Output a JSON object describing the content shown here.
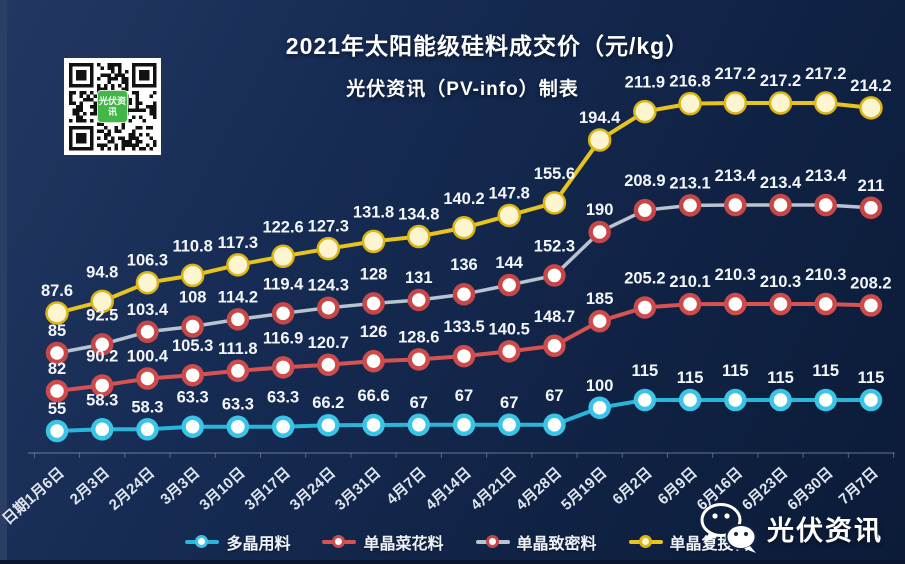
{
  "header": {
    "title": "2021年太阳能级硅料成交价（元/kg）",
    "subtitle": "光伏资讯（PV-info）制表"
  },
  "qr": {
    "label": "光伏资讯"
  },
  "watermark": {
    "brand": "光伏资讯"
  },
  "colors": {
    "background_top": "#223862",
    "background_bottom": "#0b1b38",
    "value_label_text": "#f3f6fb",
    "axis_line": "#aebdd4"
  },
  "chart_data": {
    "type": "line",
    "title": "2021年太阳能级硅料成交价（元/kg）",
    "subtitle": "光伏资讯（PV-info）制表",
    "unit": "元/kg",
    "legend_position": "bottom",
    "grid": false,
    "y_axis_visible": false,
    "x_label_rotation": -42,
    "value_labels": "above each point",
    "categories": [
      "日期1月6日",
      "2月3日",
      "2月24日",
      "3月3日",
      "3月10日",
      "3月17日",
      "3月24日",
      "3月31日",
      "4月7日",
      "4月14日",
      "4月21日",
      "4月28日",
      "5月19日",
      "6月2日",
      "6月9日",
      "6月16日",
      "6月23日",
      "6月30日",
      "7月7日"
    ],
    "series": [
      {
        "name": "多晶用料",
        "color": "#2ab5da",
        "marker_ring": "#3ac4e6",
        "marker_fill": "#ffffff",
        "values": [
          55,
          58.3,
          58.3,
          63.3,
          63.3,
          63.3,
          66.2,
          66.6,
          67,
          67,
          67,
          67,
          100,
          115,
          115,
          115,
          115,
          115,
          115
        ]
      },
      {
        "name": "单晶菜花料",
        "color": "#d85252",
        "marker_ring": "#cf4b4b",
        "marker_fill": "#ffffff",
        "values": [
          82,
          90.2,
          100.4,
          105.3,
          111.8,
          116.9,
          120.7,
          126,
          128.6,
          133.5,
          140.5,
          148.7,
          185,
          205.2,
          210.1,
          210.3,
          210.3,
          210.3,
          208.2
        ]
      },
      {
        "name": "单晶致密料",
        "color": "#b9c4d2",
        "marker_ring": "#c74747",
        "marker_fill": "#ffffff",
        "values": [
          85,
          92.5,
          103.4,
          108,
          114.2,
          119.4,
          124.3,
          128,
          131,
          136,
          144,
          152.3,
          190,
          208.9,
          213.1,
          213.4,
          213.4,
          213.4,
          211
        ]
      },
      {
        "name": "单晶复投料",
        "color": "#e8c41e",
        "marker_ring": "#dcb514",
        "marker_fill": "#fdf5d0",
        "values": [
          87.6,
          94.8,
          106.3,
          110.8,
          117.3,
          122.6,
          127.3,
          131.8,
          134.8,
          140.2,
          147.8,
          155.6,
          194.4,
          211.9,
          216.8,
          217.2,
          217.2,
          217.2,
          214.2
        ]
      }
    ]
  }
}
